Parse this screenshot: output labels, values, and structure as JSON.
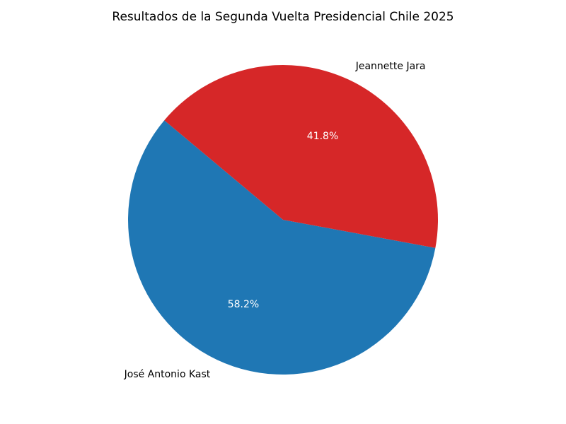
{
  "chart_data": {
    "type": "pie",
    "title": "Resultados de la Segunda Vuelta Presidencial Chile 2025",
    "start_angle_deg": 140,
    "counterclock": true,
    "slices": [
      {
        "label": "José Antonio Kast",
        "value": 58.2,
        "pct_label": "58.2%",
        "color": "#1f77b4"
      },
      {
        "label": "Jeannette Jara",
        "value": 41.8,
        "pct_label": "41.8%",
        "color": "#d62728"
      }
    ]
  }
}
